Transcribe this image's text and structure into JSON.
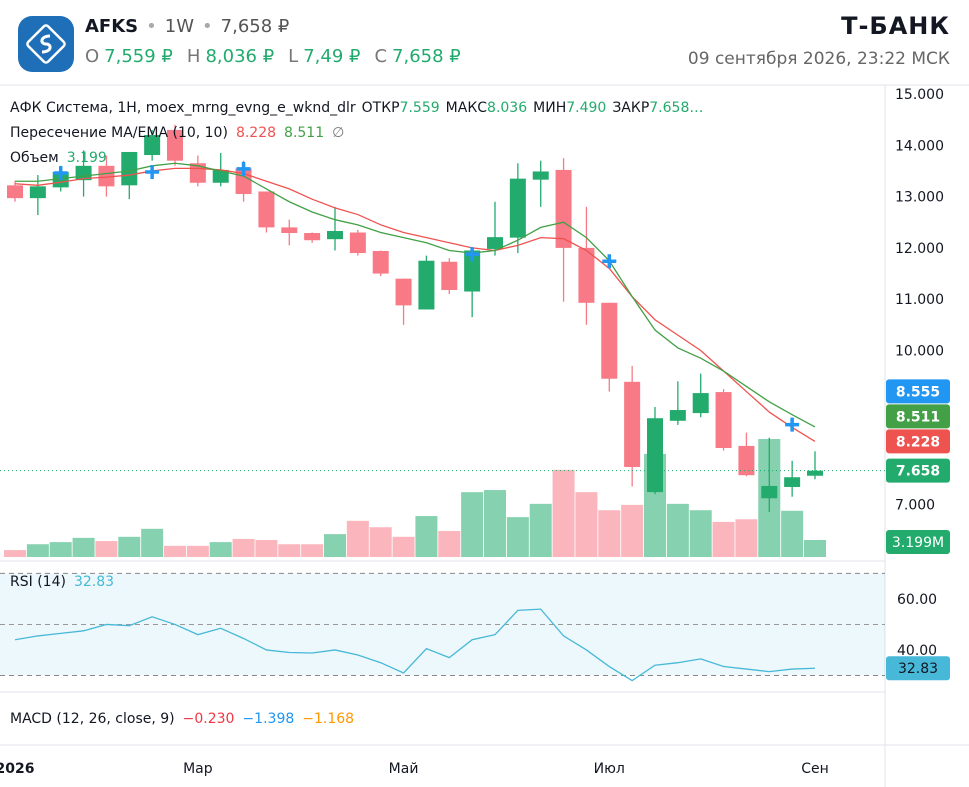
{
  "header": {
    "ticker": "AFKS",
    "interval": "1W",
    "price": "7,658 ₽",
    "ohlc": [
      {
        "label": "O",
        "value": "7,559 ₽"
      },
      {
        "label": "H",
        "value": "8,036 ₽"
      },
      {
        "label": "L",
        "value": "7,49 ₽"
      },
      {
        "label": "C",
        "value": "7,658 ₽"
      }
    ],
    "brand": "Т-БАНК",
    "datetime": "09 сентября 2026, 23:22 МСК"
  },
  "chart_data": [
    {
      "type": "candlestick",
      "title": "АФК Система, 1Н, moex_mrng_evng_e_wknd_dlr",
      "legend": [
        {
          "label": "ОТКР",
          "value": "7.559"
        },
        {
          "label": "МАКС",
          "value": "8.036"
        },
        {
          "label": "МИН",
          "value": "7.490"
        },
        {
          "label": "ЗАКР",
          "value": "7.658…"
        }
      ],
      "categories": [
        "2026",
        null,
        null,
        null,
        null,
        null,
        null,
        null,
        "Мар",
        null,
        null,
        null,
        null,
        null,
        null,
        null,
        null,
        "Май",
        null,
        null,
        null,
        null,
        null,
        null,
        null,
        null,
        "Июл",
        null,
        null,
        null,
        null,
        null,
        null,
        null,
        null,
        "Сен"
      ],
      "open": [
        13.22,
        12.97,
        13.18,
        13.32,
        13.6,
        13.22,
        13.81,
        14.3,
        13.65,
        13.27,
        13.55,
        13.1,
        12.4,
        12.29,
        12.17,
        12.3,
        11.94,
        11.4,
        10.8,
        11.73,
        11.15,
        11.98,
        12.2,
        13.33,
        13.52,
        12.0,
        10.93,
        9.39,
        7.24,
        8.63,
        8.78,
        9.19,
        8.14,
        7.12,
        7.34,
        7.559
      ],
      "high": [
        13.3,
        13.42,
        13.6,
        13.9,
        13.8,
        13.87,
        14.3,
        14.4,
        13.8,
        13.85,
        13.7,
        13.1,
        12.55,
        12.3,
        12.8,
        12.35,
        11.95,
        11.4,
        11.85,
        11.8,
        12.0,
        12.9,
        13.65,
        13.7,
        13.75,
        12.8,
        10.93,
        9.7,
        8.9,
        9.4,
        9.55,
        9.25,
        8.4,
        8.3,
        7.85,
        8.036
      ],
      "low": [
        12.9,
        12.64,
        13.1,
        13.0,
        13.0,
        12.95,
        13.7,
        13.6,
        13.2,
        13.2,
        12.9,
        12.3,
        12.05,
        12.1,
        11.95,
        11.85,
        11.45,
        10.5,
        10.8,
        11.1,
        10.65,
        11.85,
        11.9,
        12.8,
        10.95,
        10.5,
        9.2,
        7.35,
        7.2,
        8.55,
        8.7,
        8.05,
        7.55,
        6.85,
        7.15,
        7.49
      ],
      "close": [
        12.97,
        13.2,
        13.48,
        13.6,
        13.2,
        13.87,
        14.2,
        13.7,
        13.27,
        13.52,
        13.05,
        12.4,
        12.29,
        12.15,
        12.33,
        11.9,
        11.5,
        10.88,
        11.75,
        11.18,
        11.95,
        12.21,
        13.35,
        13.49,
        12.0,
        10.93,
        9.45,
        7.73,
        8.68,
        8.84,
        9.17,
        8.1,
        7.57,
        7.36,
        7.53,
        7.658
      ],
      "up_color": "#22ab6d",
      "down_color": "#f77a86",
      "ylim": [
        5.975,
        15.117
      ],
      "yticks": [
        {
          "value": 7,
          "label": "7.000"
        },
        {
          "value": 10,
          "label": "10.000"
        },
        {
          "value": 11,
          "label": "11.000"
        },
        {
          "value": 12,
          "label": "12.000"
        },
        {
          "value": 13,
          "label": "13.000"
        },
        {
          "value": 14,
          "label": "14.000"
        },
        {
          "value": 15,
          "label": "15.000"
        }
      ],
      "overlay": {
        "title": "Пересечение MA/EMA (10, 10)",
        "symbol": "∅",
        "series": [
          {
            "color": "#ef5350",
            "values": [
              13.25,
              13.22,
              13.28,
              13.35,
              13.38,
              13.42,
              13.5,
              13.55,
              13.55,
              13.52,
              13.45,
              13.3,
              13.15,
              12.95,
              12.78,
              12.65,
              12.45,
              12.3,
              12.2,
              12.1,
              12.0,
              11.95,
              12.05,
              12.2,
              12.18,
              11.95,
              11.6,
              11.05,
              10.6,
              10.3,
              10.0,
              9.6,
              9.2,
              8.8,
              8.5,
              8.228
            ]
          },
          {
            "color": "#43a047",
            "values": [
              13.3,
              13.3,
              13.35,
              13.4,
              13.45,
              13.5,
              13.6,
              13.65,
              13.6,
              13.5,
              13.4,
              13.15,
              12.9,
              12.7,
              12.55,
              12.45,
              12.3,
              12.2,
              12.1,
              11.95,
              11.9,
              11.95,
              12.15,
              12.4,
              12.5,
              12.2,
              11.75,
              11.05,
              10.4,
              10.05,
              9.85,
              9.6,
              9.3,
              9.0,
              8.75,
              8.511
            ]
          }
        ],
        "crosses": {
          "color": "#2196f3",
          "points": [
            {
              "index": 2,
              "value": 13.46
            },
            {
              "index": 6,
              "value": 13.48
            },
            {
              "index": 10,
              "value": 13.54
            },
            {
              "index": 20,
              "value": 11.88
            },
            {
              "index": 26,
              "value": 11.74
            },
            {
              "index": 34,
              "value": 8.555
            }
          ]
        }
      },
      "volume": {
        "title": "Объем",
        "axis_label": "3.199M",
        "values": [
          1.3,
          2.4,
          2.8,
          3.6,
          3.0,
          3.8,
          5.3,
          2.1,
          2.1,
          2.8,
          3.4,
          3.2,
          2.4,
          2.4,
          4.3,
          6.8,
          5.6,
          3.8,
          7.7,
          4.9,
          12.2,
          12.6,
          7.5,
          10.0,
          16.4,
          12.2,
          8.8,
          9.8,
          19.4,
          10.0,
          8.8,
          6.6,
          7.1,
          22.2,
          8.7,
          3.199
        ]
      }
    },
    {
      "type": "line",
      "title": "RSI (14)",
      "color": "#47b8d8",
      "ylim": [
        24.3,
        73.3
      ],
      "yticks": [
        {
          "value": 40,
          "label": "40.00"
        },
        {
          "value": 60,
          "label": "60.00"
        }
      ],
      "band": [
        30,
        70
      ],
      "midline": 50,
      "values": [
        44,
        45.5,
        46.5,
        47.5,
        50,
        49.5,
        53,
        50,
        46,
        48.5,
        44.5,
        40,
        39,
        38.8,
        40,
        38,
        35,
        31,
        40.5,
        37,
        44,
        46,
        55.5,
        56,
        45.5,
        40,
        33.5,
        28,
        34,
        35,
        36.5,
        33.5,
        32.5,
        31.5,
        32.5,
        32.83
      ]
    },
    {
      "type": "macd",
      "title": "MACD (12, 26, close, 9)",
      "legend": [
        {
          "value": "−0.230",
          "color": "#f23645"
        },
        {
          "value": "−1.398",
          "color": "#2196f3"
        },
        {
          "value": "−1.168",
          "color": "#ff9800"
        }
      ]
    }
  ]
}
